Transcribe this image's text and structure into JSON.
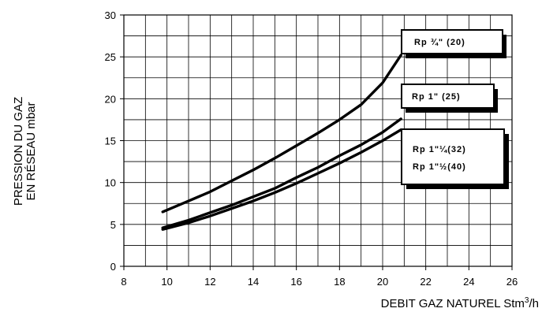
{
  "chart_data": {
    "type": "line",
    "xlabel": "DEBIT GAZ NATUREL Stm",
    "xlabel_sup": "3",
    "xlabel_suffix": "/h",
    "ylabel_line1": "PRESSION DU GAZ",
    "ylabel_line2": "EN RÉSEAU mbar",
    "xlim": [
      8,
      26
    ],
    "ylim": [
      0,
      30
    ],
    "x_ticks": [
      "8",
      "10",
      "12",
      "14",
      "16",
      "18",
      "20",
      "22",
      "24",
      "26"
    ],
    "y_ticks": [
      "0",
      "5",
      "10",
      "15",
      "20",
      "25",
      "30"
    ],
    "grid": true,
    "grid_x_step": 1,
    "grid_y_step": 2.5,
    "series": [
      {
        "name": "Rp ¾\" (20)",
        "x": [
          9.8,
          11,
          12,
          13,
          14,
          15,
          16,
          17,
          18,
          19,
          20,
          20.85
        ],
        "y": [
          6.5,
          7.8,
          8.9,
          10.2,
          11.5,
          12.9,
          14.4,
          15.9,
          17.5,
          19.3,
          21.9,
          25.2
        ]
      },
      {
        "name": "Rp 1\" (25)",
        "x": [
          9.8,
          11,
          12,
          13,
          14,
          15,
          16,
          17,
          18,
          19,
          20,
          20.85
        ],
        "y": [
          4.6,
          5.5,
          6.4,
          7.3,
          8.3,
          9.3,
          10.6,
          11.8,
          13.2,
          14.5,
          16.0,
          17.6
        ]
      },
      {
        "name": "Rp 1\"¼ (32) / Rp 1\"½ (40)",
        "x": [
          9.8,
          11,
          12,
          13,
          14,
          15,
          16,
          17,
          18,
          19,
          20,
          20.85
        ],
        "y": [
          4.4,
          5.2,
          6.0,
          6.9,
          7.8,
          8.8,
          9.9,
          11.1,
          12.3,
          13.6,
          15.0,
          16.3
        ]
      }
    ],
    "legend_labels": [
      {
        "lines": [
          "Rp ¾\" (20)"
        ]
      },
      {
        "lines": [
          "Rp 1\" (25)"
        ]
      },
      {
        "lines": [
          "Rp 1\"¼(32)",
          "Rp 1\"½(40)"
        ]
      }
    ]
  }
}
